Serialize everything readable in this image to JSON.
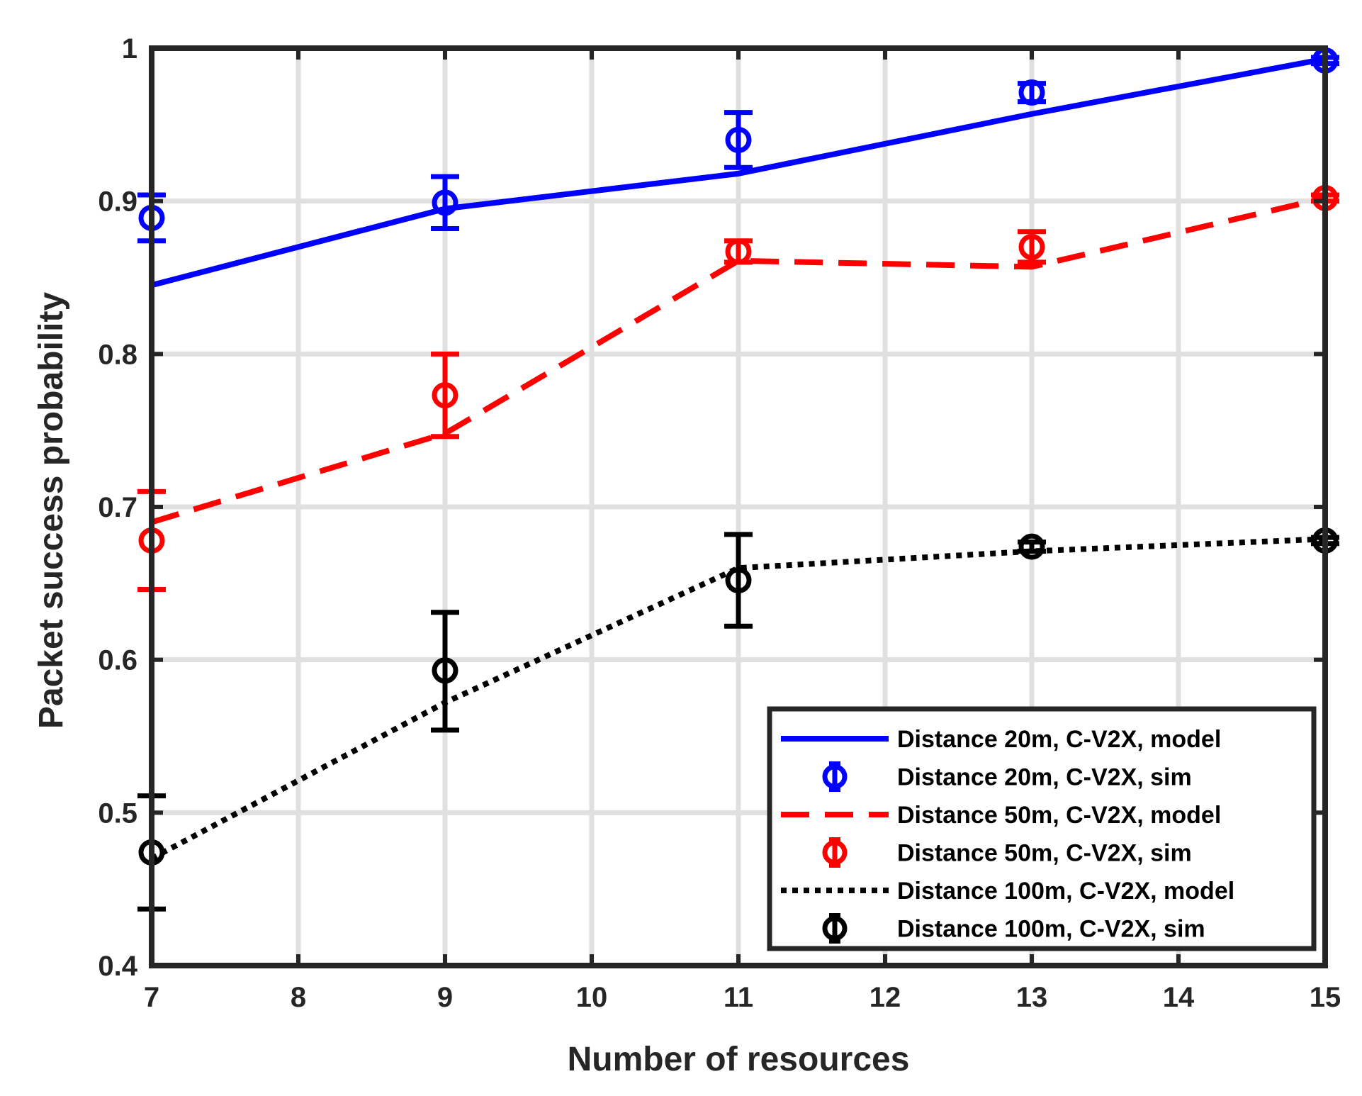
{
  "chart_data": {
    "type": "line",
    "title": "",
    "xlabel": "Number of resources",
    "ylabel": "Packet success probability",
    "xlim": [
      7,
      15
    ],
    "ylim": [
      0.4,
      1.0
    ],
    "xticks": [
      7,
      8,
      9,
      10,
      11,
      12,
      13,
      14,
      15
    ],
    "xtick_labels": [
      "7",
      "8",
      "9",
      "10",
      "11",
      "12",
      "13",
      "14",
      "15"
    ],
    "yticks": [
      0.4,
      0.5,
      0.6,
      0.7,
      0.8,
      0.9,
      1.0
    ],
    "ytick_labels": [
      "0.4",
      "0.5",
      "0.6",
      "0.7",
      "0.8",
      "0.9",
      "1"
    ],
    "grid": true,
    "legend_position": "bottom-right",
    "series": [
      {
        "name": "Distance 20m, C-V2X, model",
        "kind": "model",
        "color": "#0000ff",
        "line_style": "solid",
        "x": [
          7,
          9,
          11,
          13,
          15
        ],
        "y": [
          0.845,
          0.895,
          0.918,
          0.957,
          0.993
        ]
      },
      {
        "name": "Distance 20m, C-V2X, sim",
        "kind": "sim",
        "color": "#0000ff",
        "x": [
          7,
          9,
          11,
          13,
          15
        ],
        "y": [
          0.889,
          0.899,
          0.94,
          0.971,
          0.992
        ],
        "err_low": [
          0.874,
          0.882,
          0.922,
          0.965,
          0.99
        ],
        "err_high": [
          0.904,
          0.916,
          0.958,
          0.977,
          0.994
        ]
      },
      {
        "name": "Distance 50m, C-V2X, model",
        "kind": "model",
        "color": "#ff0000",
        "line_style": "dashed",
        "x": [
          7,
          9,
          11,
          13,
          15
        ],
        "y": [
          0.69,
          0.748,
          0.861,
          0.857,
          0.902
        ]
      },
      {
        "name": "Distance 50m, C-V2X, sim",
        "kind": "sim",
        "color": "#ff0000",
        "x": [
          7,
          9,
          11,
          13,
          15
        ],
        "y": [
          0.678,
          0.773,
          0.867,
          0.87,
          0.902
        ],
        "err_low": [
          0.646,
          0.746,
          0.86,
          0.86,
          0.9
        ],
        "err_high": [
          0.71,
          0.8,
          0.874,
          0.88,
          0.904
        ]
      },
      {
        "name": "Distance 100m, C-V2X, model",
        "kind": "model",
        "color": "#000000",
        "line_style": "dotted",
        "x": [
          7,
          9,
          11,
          13,
          15
        ],
        "y": [
          0.47,
          0.572,
          0.66,
          0.671,
          0.679
        ]
      },
      {
        "name": "Distance 100m, C-V2X, sim",
        "kind": "sim",
        "color": "#000000",
        "x": [
          7,
          9,
          11,
          13,
          15
        ],
        "y": [
          0.474,
          0.593,
          0.652,
          0.674,
          0.678
        ],
        "err_low": [
          0.437,
          0.554,
          0.622,
          0.671,
          0.676
        ],
        "err_high": [
          0.511,
          0.631,
          0.682,
          0.677,
          0.68
        ]
      }
    ]
  }
}
